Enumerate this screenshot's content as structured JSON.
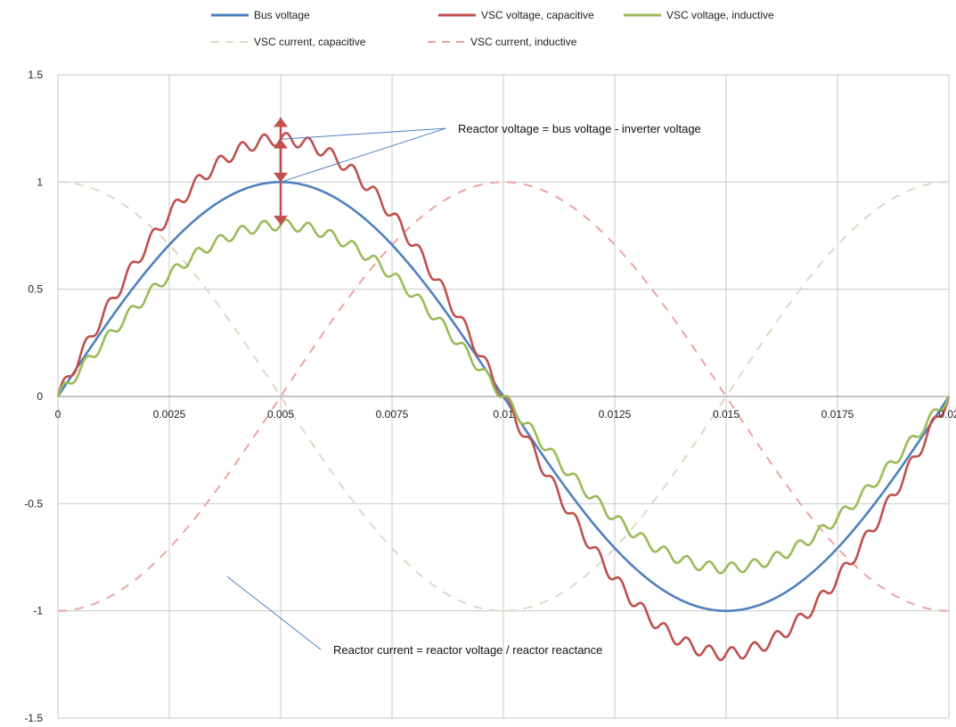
{
  "chart_data": {
    "type": "line",
    "title": "",
    "xlabel": "",
    "ylabel": "",
    "xlim": [
      0,
      0.02
    ],
    "ylim": [
      -1.5,
      1.5
    ],
    "grid": true,
    "legend_position": "top",
    "x_ticks": [
      {
        "value": 0,
        "label": "0"
      },
      {
        "value": 0.0025,
        "label": "0.0025"
      },
      {
        "value": 0.005,
        "label": "0.005"
      },
      {
        "value": 0.0075,
        "label": "0.0075"
      },
      {
        "value": 0.01,
        "label": "0.01"
      },
      {
        "value": 0.0125,
        "label": "0.0125"
      },
      {
        "value": 0.015,
        "label": "0.015"
      },
      {
        "value": 0.0175,
        "label": "0.0175"
      },
      {
        "value": 0.02,
        "label": "0.02"
      }
    ],
    "y_ticks": [
      {
        "value": 1.5,
        "label": "1.5"
      },
      {
        "value": 1,
        "label": "1"
      },
      {
        "value": 0.5,
        "label": "0.5"
      },
      {
        "value": 0,
        "label": "0"
      },
      {
        "value": -0.5,
        "label": "-0.5"
      },
      {
        "value": -1,
        "label": "-1"
      },
      {
        "value": -1.5,
        "label": "-1.5"
      }
    ],
    "series": [
      {
        "name": "Bus voltage",
        "color": "#4f81bd",
        "dash": "solid",
        "function": "sine",
        "amplitude": 1.0,
        "ripple": 0,
        "x": [
          0,
          0.0025,
          0.005,
          0.0075,
          0.01,
          0.0125,
          0.015,
          0.0175,
          0.02
        ],
        "values": [
          0,
          0.707,
          1,
          0.707,
          0,
          -0.707,
          -1,
          -0.707,
          0
        ]
      },
      {
        "name": "VSC voltage, capacitive",
        "color": "#c0504d",
        "dash": "solid",
        "function": "sine",
        "amplitude": 1.2,
        "ripple": 0.03,
        "x": [
          0,
          0.0025,
          0.005,
          0.0075,
          0.01,
          0.0125,
          0.015,
          0.0175,
          0.02
        ],
        "values": [
          0,
          0.85,
          1.2,
          0.85,
          0,
          -0.85,
          -1.2,
          -0.85,
          0
        ]
      },
      {
        "name": "VSC voltage, inductive",
        "color": "#9bbb59",
        "dash": "solid",
        "function": "sine",
        "amplitude": 0.8,
        "ripple": 0.025,
        "x": [
          0,
          0.0025,
          0.005,
          0.0075,
          0.01,
          0.0125,
          0.015,
          0.0175,
          0.02
        ],
        "values": [
          0,
          0.57,
          0.8,
          0.57,
          0,
          -0.57,
          -0.8,
          -0.57,
          0
        ]
      },
      {
        "name": "VSC current, capacitive",
        "color": "#ddd9c3",
        "dash": "dashed",
        "function": "cosine",
        "amplitude": 1.0,
        "ripple": 0,
        "x": [
          0,
          0.0025,
          0.005,
          0.0075,
          0.01,
          0.0125,
          0.015,
          0.0175,
          0.02
        ],
        "values": [
          1,
          0.707,
          0,
          -0.707,
          -1,
          -0.707,
          0,
          0.707,
          1
        ]
      },
      {
        "name": "VSC current, inductive",
        "color": "#eba4a2",
        "dash": "dashed",
        "function": "neg-cosine",
        "amplitude": 1.0,
        "ripple": 0,
        "x": [
          0,
          0.0025,
          0.005,
          0.0075,
          0.01,
          0.0125,
          0.015,
          0.0175,
          0.02
        ],
        "values": [
          -1,
          -0.707,
          0,
          0.707,
          1,
          0.707,
          0,
          -0.707,
          -1
        ]
      }
    ],
    "annotations": [
      {
        "text": "Reactor voltage = bus voltage - inverter voltage",
        "pointers": [
          [
            0.005,
            1.2
          ],
          [
            0.005,
            1.0
          ]
        ],
        "text_anchor": [
          0.0087,
          1.25
        ]
      },
      {
        "text": "Reactor current = reactor voltage / reactor reactance",
        "pointers": [
          [
            0.0038,
            -0.84
          ]
        ],
        "text_anchor": [
          0.0059,
          -1.18
        ]
      }
    ],
    "arrows": [
      {
        "x": 0.005,
        "y1": 1.0,
        "y2": 1.3,
        "color": "#c0504d"
      },
      {
        "x": 0.005,
        "y1": 1.2,
        "y2": 0.8,
        "color": "#c0504d"
      }
    ],
    "gridline_color": "#c8c8c8",
    "annotation_line_color": "#4f81bd"
  }
}
